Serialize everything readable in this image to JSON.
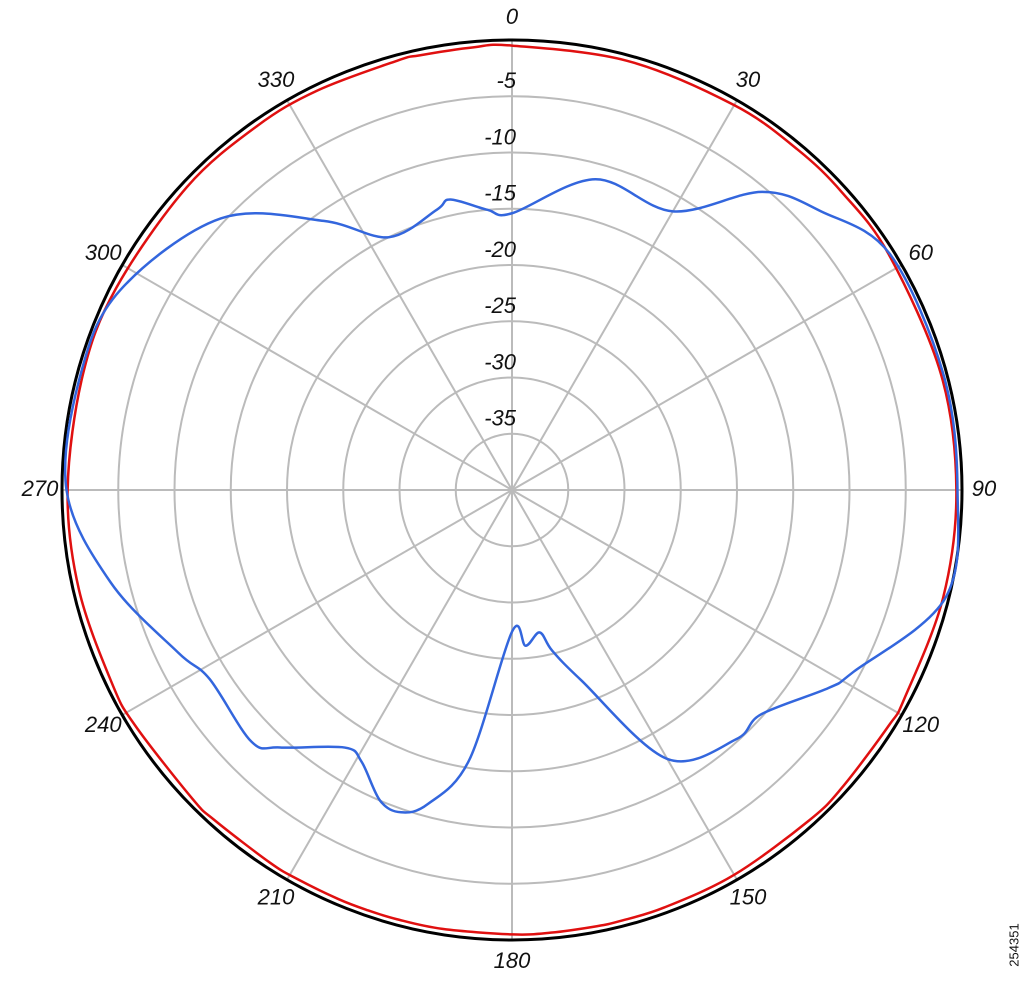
{
  "chart_data": {
    "type": "polar",
    "theta": [
      0,
      15,
      30,
      40,
      48,
      58,
      75,
      90,
      104,
      118,
      122,
      132,
      138,
      150,
      160,
      166,
      169,
      175,
      180,
      189,
      195,
      199,
      203,
      209,
      213,
      222,
      226,
      238,
      244,
      257,
      270,
      285,
      297,
      313,
      325,
      334,
      345,
      348,
      355
    ],
    "series": [
      {
        "color": "#e01010",
        "values": [
          -0.5,
          -0.5,
          -0.5,
          -0.5,
          -0.5,
          -0.5,
          -0.5,
          -0.5,
          -0.5,
          -0.5,
          -0.5,
          -0.5,
          -0.5,
          -0.5,
          -0.5,
          -0.5,
          -0.5,
          -0.5,
          -0.5,
          -0.5,
          -0.5,
          -0.5,
          -0.5,
          -0.5,
          -0.5,
          -0.5,
          -0.5,
          -0.5,
          -0.5,
          -0.5,
          -0.5,
          -0.5,
          -0.5,
          -0.5,
          -0.5,
          -0.5,
          -0.5,
          -0.5,
          -0.5
        ]
      },
      {
        "color": "#3366dd",
        "values": [
          -15.4,
          -11.4,
          -11.4,
          -5.4,
          -3.0,
          -0.4,
          -0.3,
          -0.4,
          -0.3,
          -5.6,
          -6.8,
          -10.2,
          -10.2,
          -12.4,
          -22,
          -25.3,
          -27.1,
          -26.1,
          -27.4,
          -15.7,
          -11.1,
          -9.7,
          -10,
          -12.4,
          -12.7,
          -9.2,
          -7.8,
          -8.3,
          -7,
          -3.4,
          -0.4,
          -0.3,
          -0.9,
          -4.6,
          -10.8,
          -15,
          -14.2,
          -13.6,
          -15
        ]
      }
    ],
    "rlim": [
      -40,
      0
    ],
    "rticks": [
      -35,
      -30,
      -25,
      -20,
      -15,
      -10,
      -5
    ],
    "thetaticks": [
      0,
      30,
      60,
      90,
      120,
      150,
      180,
      210,
      240,
      270,
      300,
      330
    ],
    "grid": true,
    "side_label": "254351"
  }
}
